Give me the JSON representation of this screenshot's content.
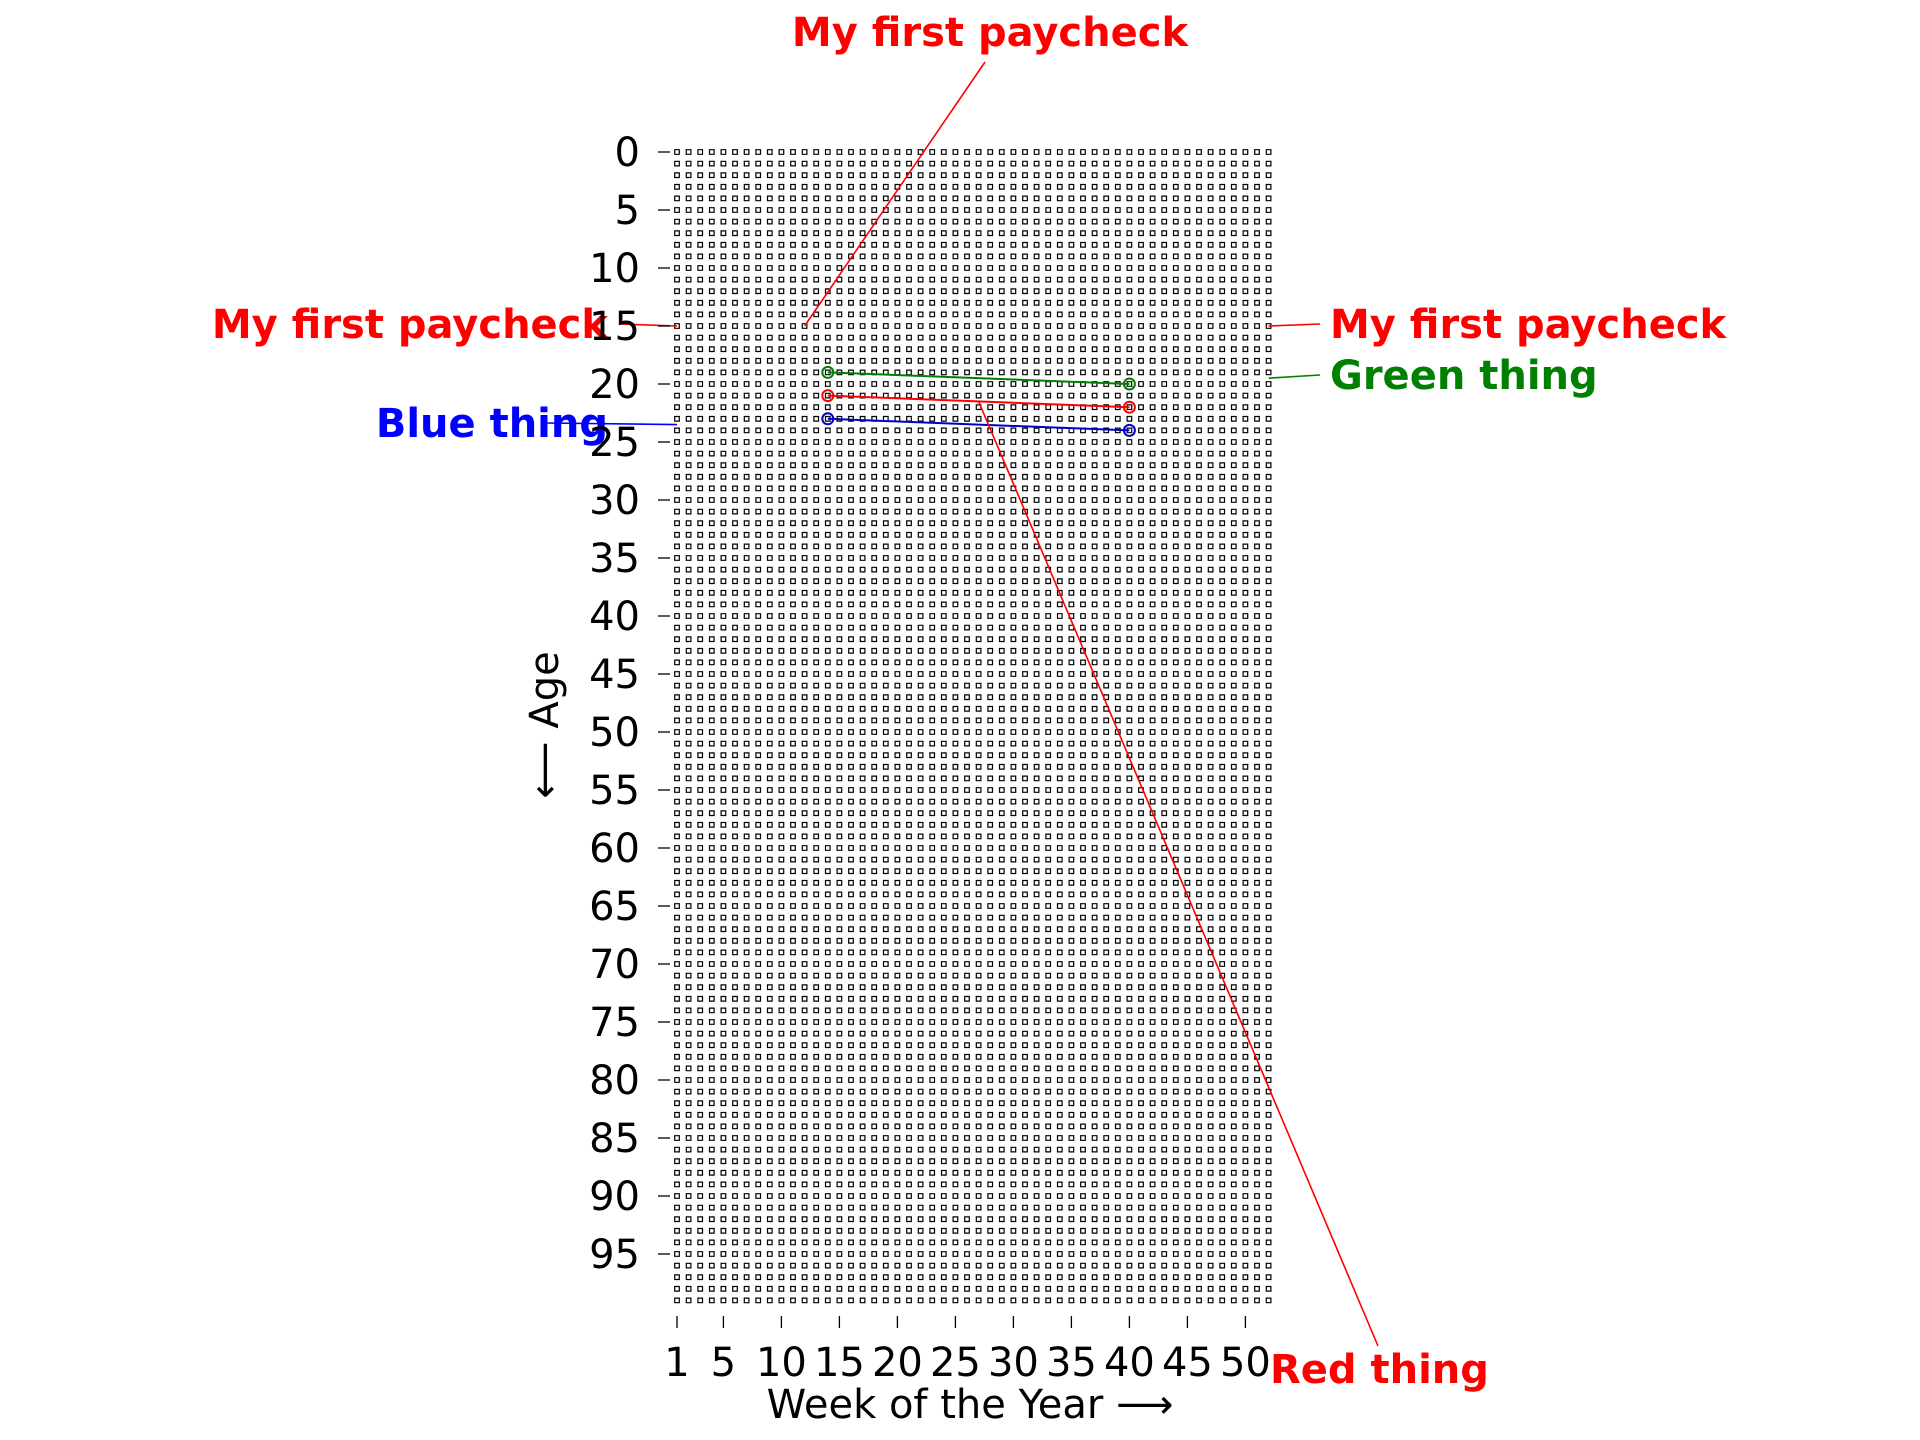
{
  "chart_data": {
    "type": "scatter",
    "title": "",
    "xlabel": "Week of the Year  ⟶",
    "ylabel": "⟵  Age",
    "xlim": [
      1,
      52
    ],
    "ylim": [
      0,
      99
    ],
    "y_inverted": true,
    "grid": false,
    "legend": "none",
    "grid_symbol": "hollow-square",
    "x_ticks": [
      1,
      5,
      10,
      15,
      20,
      25,
      30,
      35,
      40,
      45,
      50
    ],
    "y_ticks": [
      0,
      5,
      10,
      15,
      20,
      25,
      30,
      35,
      40,
      45,
      50,
      55,
      60,
      65,
      70,
      75,
      80,
      85,
      90,
      95
    ],
    "series": [
      {
        "color": "#008000",
        "points": [
          {
            "week": 14,
            "age": 19
          },
          {
            "week": 40,
            "age": 20
          }
        ]
      },
      {
        "color": "#ff0000",
        "points": [
          {
            "week": 14,
            "age": 21
          },
          {
            "week": 40,
            "age": 22
          }
        ]
      },
      {
        "color": "#0000cc",
        "points": [
          {
            "week": 14,
            "age": 23
          },
          {
            "week": 40,
            "age": 24
          }
        ]
      }
    ],
    "annotations": [
      {
        "text": "My first paycheck",
        "color": "#ff0000",
        "target": {
          "week": 12,
          "age": 15
        },
        "placement": "top"
      },
      {
        "text": "My first paycheck",
        "color": "#ff0000",
        "target": {
          "week": 1,
          "age": 15
        },
        "placement": "left"
      },
      {
        "text": "My first paycheck",
        "color": "#ff0000",
        "target": {
          "week": 52,
          "age": 15
        },
        "placement": "right"
      },
      {
        "text": "Green thing",
        "color": "#008000",
        "target": {
          "week": 52,
          "age": 19.5
        },
        "placement": "right"
      },
      {
        "text": "Blue thing",
        "color": "#0000ff",
        "target": {
          "week": 1,
          "age": 23.5
        },
        "placement": "left"
      },
      {
        "text": "Red thing",
        "color": "#ff0000",
        "target": {
          "week": 27,
          "age": 21.5
        },
        "placement": "bottom-right"
      }
    ]
  }
}
